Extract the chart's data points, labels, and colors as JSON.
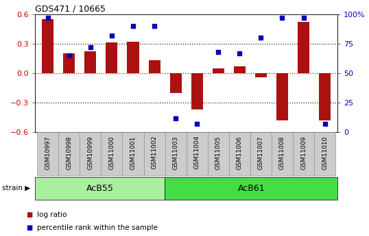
{
  "title": "GDS471 / 10665",
  "samples": [
    "GSM10997",
    "GSM10998",
    "GSM10999",
    "GSM11000",
    "GSM11001",
    "GSM11002",
    "GSM11003",
    "GSM11004",
    "GSM11005",
    "GSM11006",
    "GSM11007",
    "GSM11008",
    "GSM11009",
    "GSM11010"
  ],
  "log_ratio": [
    0.55,
    0.2,
    0.22,
    0.31,
    0.32,
    0.13,
    -0.2,
    -0.37,
    0.05,
    0.07,
    -0.04,
    -0.48,
    0.52,
    -0.48
  ],
  "percentile": [
    97,
    65,
    72,
    82,
    90,
    90,
    12,
    7,
    68,
    67,
    80,
    97,
    97,
    7
  ],
  "strain_groups": [
    {
      "label": "AcB55",
      "start": 0,
      "end": 6,
      "color": "#aaeea0"
    },
    {
      "label": "AcB61",
      "start": 6,
      "end": 14,
      "color": "#44dd44"
    }
  ],
  "bar_color": "#aa1111",
  "dot_color": "#0000bb",
  "ylim_left": [
    -0.6,
    0.6
  ],
  "ylim_right": [
    0,
    100
  ],
  "yticks_left": [
    -0.6,
    -0.3,
    0.0,
    0.3,
    0.6
  ],
  "yticks_right": [
    0,
    25,
    50,
    75,
    100
  ],
  "ytick_labels_right": [
    "0",
    "25",
    "50",
    "75",
    "100%"
  ],
  "zero_line_color": "#dd0000",
  "dotted_line_color": "#222222",
  "bg_color": "#ffffff",
  "legend_items": [
    {
      "label": "log ratio",
      "color": "#aa1111"
    },
    {
      "label": "percentile rank within the sample",
      "color": "#0000bb"
    }
  ],
  "bar_width": 0.55
}
